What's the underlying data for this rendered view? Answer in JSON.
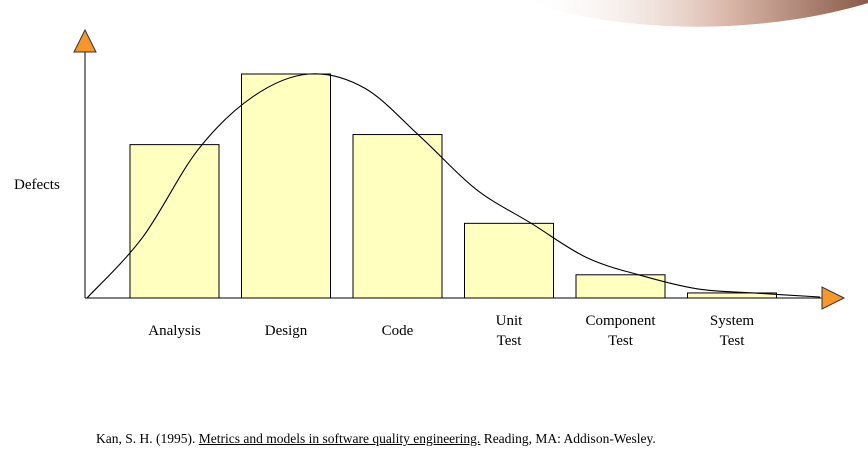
{
  "chart_data": {
    "type": "bar",
    "ylabel": "Defects",
    "categories": [
      {
        "lines": [
          "Analysis"
        ]
      },
      {
        "lines": [
          "Design"
        ]
      },
      {
        "lines": [
          "Code"
        ]
      },
      {
        "lines": [
          "Unit",
          "Test"
        ]
      },
      {
        "lines": [
          "Component",
          "Test"
        ]
      },
      {
        "lines": [
          "System",
          "Test"
        ]
      }
    ],
    "values": [
      152,
      222,
      162,
      74,
      23,
      5
    ],
    "ylim": [
      0,
      260
    ],
    "curve": {
      "description": "smooth defect-distribution curve overlay peaking at Design",
      "points": [
        [
          0,
          0
        ],
        [
          0.5,
          60
        ],
        [
          1,
          147
        ],
        [
          1.5,
          200
        ],
        [
          2,
          222
        ],
        [
          2.5,
          208
        ],
        [
          3,
          160
        ],
        [
          3.5,
          108
        ],
        [
          4,
          74
        ],
        [
          4.5,
          40
        ],
        [
          5,
          22
        ],
        [
          5.5,
          9
        ],
        [
          6,
          5
        ],
        [
          6.6,
          1
        ]
      ]
    },
    "colors": {
      "bar_fill": "#ffffc0",
      "bar_stroke": "#000000",
      "arrow": "#f7962a"
    }
  },
  "citation": {
    "prefix": "Kan, S. H. (1995). ",
    "title": "Metrics and models in software quality engineering.",
    "suffix": " Reading, MA: Addison-Wesley."
  }
}
